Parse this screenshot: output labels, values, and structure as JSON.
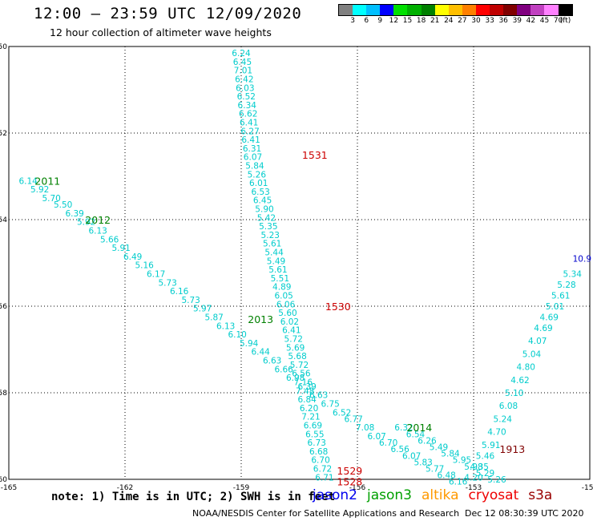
{
  "header": {
    "title": "12:00 — 23:59 UTC 12/09/2020",
    "subtitle": "12 hour collection of altimeter wave heights"
  },
  "colorbar": {
    "colors": [
      "#808080",
      "#00ffff",
      "#00bfff",
      "#0000ff",
      "#00e000",
      "#00b000",
      "#008000",
      "#ffff00",
      "#ffbf00",
      "#ff8000",
      "#ff0000",
      "#c00000",
      "#800000",
      "#800080",
      "#c040c0",
      "#ff80ff",
      "#000000"
    ],
    "labels": [
      "3",
      "6",
      "9",
      "12",
      "15",
      "18",
      "21",
      "24",
      "27",
      "30",
      "33",
      "36",
      "39",
      "42",
      "45",
      "70"
    ],
    "unit": "(ft)"
  },
  "chart_data": {
    "type": "scatter",
    "title": "12:00 — 23:59 UTC 12/09/2020",
    "subtitle": "12 hour collection of altimeter wave heights",
    "xlabel": "",
    "ylabel": "",
    "xlim": [
      -165,
      -150
    ],
    "ylim": [
      -60,
      -50
    ],
    "xticks": [
      "-165",
      "-162",
      "-159",
      "-156",
      "-153",
      "-150"
    ],
    "yticks": [
      "-50",
      "-52",
      "-54",
      "-56",
      "-58",
      "-60"
    ],
    "grid": true,
    "series": [
      {
        "name": "jason3",
        "color": "#00cccc",
        "x": [
          -164.5,
          -164.2,
          -163.9,
          -163.6,
          -163.3,
          -163.0,
          -162.7,
          -162.4,
          -162.1,
          -161.8,
          -161.5,
          -161.2,
          -160.9,
          -160.6,
          -160.3,
          -160.0,
          -159.7,
          -159.4,
          -159.1,
          -158.8,
          -158.5,
          -158.2,
          -157.9,
          -157.6,
          -157.3,
          -157.0,
          -156.7,
          -156.4,
          -156.1,
          -155.8,
          -155.5,
          -155.2,
          -154.9,
          -154.6,
          -154.3,
          -154.0,
          -153.7,
          -153.4
        ],
        "y": [
          -53.1,
          -53.3,
          -53.5,
          -53.65,
          -53.85,
          -54.05,
          -54.25,
          -54.45,
          -54.65,
          -54.85,
          -55.05,
          -55.25,
          -55.45,
          -55.65,
          -55.85,
          -56.05,
          -56.25,
          -56.45,
          -56.65,
          -56.85,
          -57.05,
          -57.25,
          -57.45,
          -57.65,
          -57.85,
          -58.05,
          -58.25,
          -58.45,
          -58.6,
          -58.8,
          -59.0,
          -59.15,
          -59.3,
          -59.45,
          -59.6,
          -59.75,
          -59.9,
          -60.05
        ],
        "labels": [
          "6.14",
          "5.92",
          "5.70",
          "5.50",
          "6.39",
          "5.92",
          "6.13",
          "5.66",
          "5.91",
          "6.49",
          "5.16",
          "6.17",
          "5.73",
          "6.16",
          "5.73",
          "5.97",
          "5.87",
          "6.13",
          "6.10",
          "5.94",
          "6.44",
          "6.63",
          "6.66",
          "6.98",
          "6.39",
          "6.63",
          "6.75",
          "6.52",
          "6.77",
          "7.08",
          "6.07",
          "6.70",
          "6.56",
          "6.07",
          "5.83",
          "5.77",
          "6.48",
          "6.16"
        ]
      },
      {
        "name": "jason3",
        "color": "#00cccc",
        "x": [
          -154.8,
          -154.5,
          -154.2,
          -153.9,
          -153.6,
          -153.3,
          -153.0,
          -152.7,
          -152.4,
          -152.1
        ],
        "y": [
          -58.8,
          -58.95,
          -59.1,
          -59.25,
          -59.4,
          -59.55,
          -59.7,
          -59.85,
          -60.0,
          -60.15
        ],
        "labels": [
          "6.32",
          "6.54",
          "6.26",
          "5.49",
          "5.84",
          "5.95",
          "5.98",
          "5.29",
          "5.26",
          "5.87"
        ]
      },
      {
        "name": "jason3",
        "color": "#00cccc",
        "x": [
          -159.0,
          -158.97,
          -158.95,
          -158.92,
          -158.9,
          -158.87,
          -158.85,
          -158.82,
          -158.8,
          -158.77,
          -158.75,
          -158.72,
          -158.7,
          -158.65,
          -158.6,
          -158.55,
          -158.5,
          -158.45,
          -158.4,
          -158.35,
          -158.3,
          -158.25,
          -158.2,
          -158.15,
          -158.1,
          -158.05,
          -158.0,
          -157.95,
          -157.9,
          -157.85,
          -157.8,
          -157.75,
          -157.7,
          -157.65,
          -157.6,
          -157.55,
          -157.5,
          -157.45,
          -157.4,
          -157.35,
          -157.3,
          -157.25,
          -157.2,
          -157.15,
          -157.1,
          -157.05,
          -157.0,
          -156.95,
          -156.9,
          -156.85
        ],
        "y": [
          -50.15,
          -50.35,
          -50.55,
          -50.75,
          -50.95,
          -51.15,
          -51.35,
          -51.55,
          -51.75,
          -51.95,
          -52.15,
          -52.35,
          -52.55,
          -52.75,
          -52.95,
          -53.15,
          -53.35,
          -53.55,
          -53.75,
          -53.95,
          -54.15,
          -54.35,
          -54.55,
          -54.75,
          -54.95,
          -55.15,
          -55.35,
          -55.55,
          -55.75,
          -55.95,
          -56.15,
          -56.35,
          -56.55,
          -56.75,
          -56.95,
          -57.15,
          -57.35,
          -57.55,
          -57.75,
          -57.95,
          -58.15,
          -58.35,
          -58.55,
          -58.75,
          -58.95,
          -59.15,
          -59.35,
          -59.55,
          -59.75,
          -59.95
        ],
        "labels": [
          "6.24",
          "6.45",
          "7.01",
          "6.42",
          "6.03",
          "6.52",
          "6.34",
          "6.62",
          "6.41",
          "6.27",
          "6.41",
          "6.31",
          "6.07",
          "5.84",
          "5.26",
          "6.01",
          "6.53",
          "6.45",
          "5.90",
          "5.42",
          "5.35",
          "5.23",
          "5.61",
          "5.44",
          "5.49",
          "5.61",
          "5.51",
          "4.89",
          "6.05",
          "6.06",
          "5.60",
          "6.02",
          "6.41",
          "5.72",
          "5.69",
          "5.68",
          "5.72",
          "6.56",
          "7.16",
          "7.48",
          "6.84",
          "6.20",
          "7.21",
          "6.69",
          "6.55",
          "6.73",
          "6.68",
          "6.70",
          "6.72",
          "6.71"
        ]
      },
      {
        "name": "jason3",
        "color": "#00cccc",
        "x": [
          -153.0,
          -152.85,
          -152.7,
          -152.55,
          -152.4,
          -152.25,
          -152.1,
          -151.95,
          -151.8,
          -151.65,
          -151.5,
          -151.35,
          -151.2,
          -151.05,
          -150.9,
          -150.75,
          -150.6,
          -150.45
        ],
        "y": [
          -59.95,
          -59.7,
          -59.45,
          -59.2,
          -58.9,
          -58.6,
          -58.3,
          -58.0,
          -57.7,
          -57.4,
          -57.1,
          -56.8,
          -56.5,
          -56.25,
          -56.0,
          -55.75,
          -55.5,
          -55.25
        ],
        "labels": [
          "4.20",
          "4.35",
          "5.46",
          "5.91",
          "4.70",
          "5.24",
          "6.08",
          "5.10",
          "4.62",
          "4.80",
          "5.04",
          "4.07",
          "4.69",
          "4.69",
          "5.01",
          "5.61",
          "5.28",
          "5.34"
        ]
      },
      {
        "name": "jason2",
        "color": "#0000cc",
        "x": [
          -150.2
        ],
        "y": [
          -54.9
        ],
        "labels": [
          "10.9"
        ]
      }
    ],
    "annotations": [
      {
        "text": "2011",
        "x": -164.0,
        "y": -53.1,
        "color": "#008000"
      },
      {
        "text": "2012",
        "x": -162.7,
        "y": -54.0,
        "color": "#008000"
      },
      {
        "text": "2013",
        "x": -158.5,
        "y": -56.3,
        "color": "#008000"
      },
      {
        "text": "2014",
        "x": -154.4,
        "y": -58.8,
        "color": "#008000"
      },
      {
        "text": "1531",
        "x": -157.1,
        "y": -52.5,
        "color": "#cc0000"
      },
      {
        "text": "1530",
        "x": -156.5,
        "y": -56.0,
        "color": "#cc0000"
      },
      {
        "text": "1529",
        "x": -156.2,
        "y": -59.8,
        "color": "#cc0000"
      },
      {
        "text": "1528",
        "x": -156.2,
        "y": -60.05,
        "color": "#cc0000"
      },
      {
        "text": "1913",
        "x": -152.0,
        "y": -59.3,
        "color": "#800000"
      }
    ]
  },
  "footer": {
    "note": "note: 1) Time is in UTC; 2) SWH is in feet",
    "legend": [
      {
        "label": "jason2",
        "color": "#0000ee"
      },
      {
        "label": "jason3",
        "color": "#00a000"
      },
      {
        "label": "altika",
        "color": "#ff9900"
      },
      {
        "label": "cryosat",
        "color": "#ee0000"
      },
      {
        "label": "s3a",
        "color": "#990000"
      }
    ],
    "credit": "NOAA/NESDIS Center for Satellite Applications and Research",
    "timestamp": "Dec 12 08:30:39 UTC 2020"
  }
}
